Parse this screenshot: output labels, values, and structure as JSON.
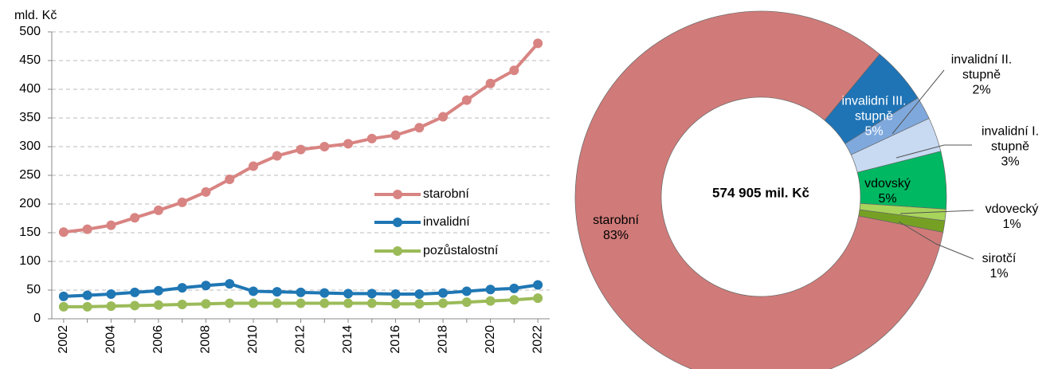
{
  "chart_data": [
    {
      "type": "line",
      "y_label": "mld. Kč",
      "x": [
        2002,
        2003,
        2004,
        2005,
        2006,
        2007,
        2008,
        2009,
        2010,
        2011,
        2012,
        2013,
        2014,
        2015,
        2016,
        2017,
        2018,
        2019,
        2020,
        2021,
        2022
      ],
      "xlim": [
        2001.5,
        2022.5
      ],
      "xticks": [
        2002,
        2004,
        2006,
        2008,
        2010,
        2012,
        2014,
        2016,
        2018,
        2020,
        2022
      ],
      "ylim": [
        0,
        500
      ],
      "yticks": [
        0,
        50,
        100,
        150,
        200,
        250,
        300,
        350,
        400,
        450,
        500
      ],
      "grid": true,
      "legend": "right",
      "series": [
        {
          "name": "starobní",
          "color": "#d88482",
          "values": [
            151,
            156,
            163,
            176,
            189,
            203,
            221,
            243,
            266,
            284,
            295,
            300,
            305,
            314,
            320,
            333,
            352,
            381,
            410,
            433,
            480
          ]
        },
        {
          "name": "invalidní",
          "color": "#1f77b4",
          "values": [
            39,
            41,
            43,
            46,
            49,
            54,
            58,
            61,
            48,
            47,
            46,
            45,
            44,
            44,
            43,
            43,
            45,
            48,
            51,
            53,
            59
          ]
        },
        {
          "name": "pozůstalostní",
          "color": "#9bbb59",
          "values": [
            21,
            21,
            22,
            23,
            24,
            25,
            26,
            27,
            27,
            27,
            27,
            27,
            27,
            27,
            26,
            26,
            27,
            29,
            31,
            33,
            36
          ]
        }
      ]
    },
    {
      "type": "donut",
      "center_label": "574 905 mil. Kč",
      "categories": [
        "starobní",
        "invalidní III. stupně",
        "invalidní II. stupně",
        "invalidní I. stupně",
        "vdovský",
        "vdovecký",
        "sirotčí"
      ],
      "values": [
        83,
        5,
        2,
        3,
        5,
        1,
        1
      ],
      "value_labels": [
        "83%",
        "5%",
        "2%",
        "3%",
        "5%",
        "1%",
        "1%"
      ],
      "colors": [
        "#d07b79",
        "#1f74b6",
        "#7fa9dd",
        "#c8daf2",
        "#00b862",
        "#a9d45c",
        "#76a024"
      ]
    }
  ]
}
